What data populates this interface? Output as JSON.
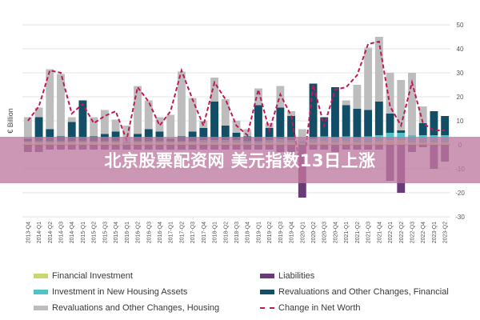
{
  "chart_data": {
    "type": "bar",
    "stacked": true,
    "ylabel": "€ Billion",
    "ylim": [
      -30,
      50
    ],
    "yticks": [
      50,
      40,
      30,
      20,
      10,
      0,
      -10,
      -20,
      -30
    ],
    "categories": [
      "2013-Q4",
      "2014-Q1",
      "2014-Q2",
      "2014-Q3",
      "2014-Q4",
      "2015-Q1",
      "2015-Q2",
      "2015-Q3",
      "2015-Q4",
      "2016-Q1",
      "2016-Q2",
      "2016-Q3",
      "2016-Q4",
      "2017-Q1",
      "2017-Q2",
      "2017-Q3",
      "2017-Q4",
      "2018-Q1",
      "2018-Q2",
      "2018-Q3",
      "2018-Q4",
      "2019-Q1",
      "2019-Q2",
      "2019-Q3",
      "2019-Q4",
      "2020-Q1",
      "2020-Q2",
      "2020-Q3",
      "2020-Q4",
      "2021-Q1",
      "2021-Q2",
      "2021-Q3",
      "2021-Q4",
      "2022-Q1",
      "2022-Q2",
      "2022-Q3",
      "2022-Q4",
      "2023-Q1",
      "2023-Q2"
    ],
    "series": [
      {
        "name": "Financial Investment",
        "color": "#c8d96f",
        "values": [
          1,
          1,
          1,
          1,
          1,
          1,
          1,
          1,
          1,
          0.5,
          1,
          1,
          1,
          1,
          1,
          1,
          1,
          1,
          1,
          1,
          0.5,
          0.5,
          1,
          1,
          1,
          0.5,
          1,
          1.5,
          1,
          1.5,
          1,
          1,
          1.5,
          2,
          2,
          1,
          1,
          1,
          1
        ]
      },
      {
        "name": "Investment in New Housing Assets",
        "color": "#4fc3c6",
        "values": [
          0.5,
          0.5,
          0.5,
          0.5,
          0.5,
          0.5,
          0.5,
          0.5,
          0.5,
          0.5,
          0.5,
          0.5,
          0.5,
          0.5,
          0.5,
          0.5,
          1,
          1,
          1,
          1,
          1,
          1,
          1,
          1.5,
          1,
          1,
          1.5,
          2,
          2,
          2,
          2,
          2.5,
          2.5,
          3,
          3,
          3,
          3,
          3,
          3
        ]
      },
      {
        "name": "Revaluations and Other Changes, Financial",
        "color": "#124e66",
        "values": [
          1,
          10,
          5,
          2,
          8,
          17,
          2,
          3,
          4,
          0,
          3,
          5,
          4,
          1,
          2,
          4,
          5,
          16,
          6,
          3,
          2,
          15,
          5,
          13,
          10,
          0,
          23,
          8,
          21,
          13,
          12,
          11,
          14,
          8,
          1,
          0,
          5,
          10,
          8
        ]
      },
      {
        "name": "Revaluations and Other Changes, Housing",
        "color": "#bdbdbd",
        "values": [
          9,
          4,
          25,
          26,
          2,
          0,
          8,
          10,
          5,
          7,
          20,
          12,
          6,
          10,
          27,
          14,
          3,
          10,
          11,
          5,
          3,
          7,
          2,
          9,
          2,
          5,
          0,
          0,
          0,
          2,
          10,
          26,
          27,
          17,
          21,
          26,
          7,
          0,
          0
        ]
      },
      {
        "name": "Liabilities",
        "color": "#6b3b79",
        "values": [
          -3,
          -3,
          -2,
          -2,
          -2,
          -2,
          -2,
          -2,
          -2,
          -2,
          -2,
          -2,
          -2,
          -2,
          -2,
          -2,
          -2,
          -2,
          -2,
          -2,
          -2,
          -2,
          -2,
          -3,
          -3,
          -22,
          -2,
          -2,
          -3,
          -2,
          -2,
          -2,
          -2,
          -15,
          -20,
          -3,
          -1,
          -10,
          -7
        ]
      },
      {
        "name": "Change in Net Worth",
        "color": "#c2185b",
        "type": "line",
        "values": [
          10,
          16,
          31,
          30,
          13,
          17,
          9,
          12,
          14,
          2,
          24,
          18,
          8,
          14,
          31,
          19,
          8,
          26,
          19,
          8,
          4,
          23,
          6,
          21,
          12,
          -14,
          25,
          8,
          23,
          24,
          29,
          42,
          43,
          16,
          8,
          26,
          9,
          6,
          6
        ]
      }
    ]
  },
  "overlay": {
    "text": "北京股票配资网 美元指数13日上涨"
  },
  "legend": {
    "financial_investment": "Financial Investment",
    "liabilities": "Liabilities",
    "new_housing": "Investment in New Housing Assets",
    "reval_financial": "Revaluations and Other Changes, Financial",
    "reval_housing": "Revaluations and Other Changes, Housing",
    "net_worth": "Change in Net Worth"
  }
}
